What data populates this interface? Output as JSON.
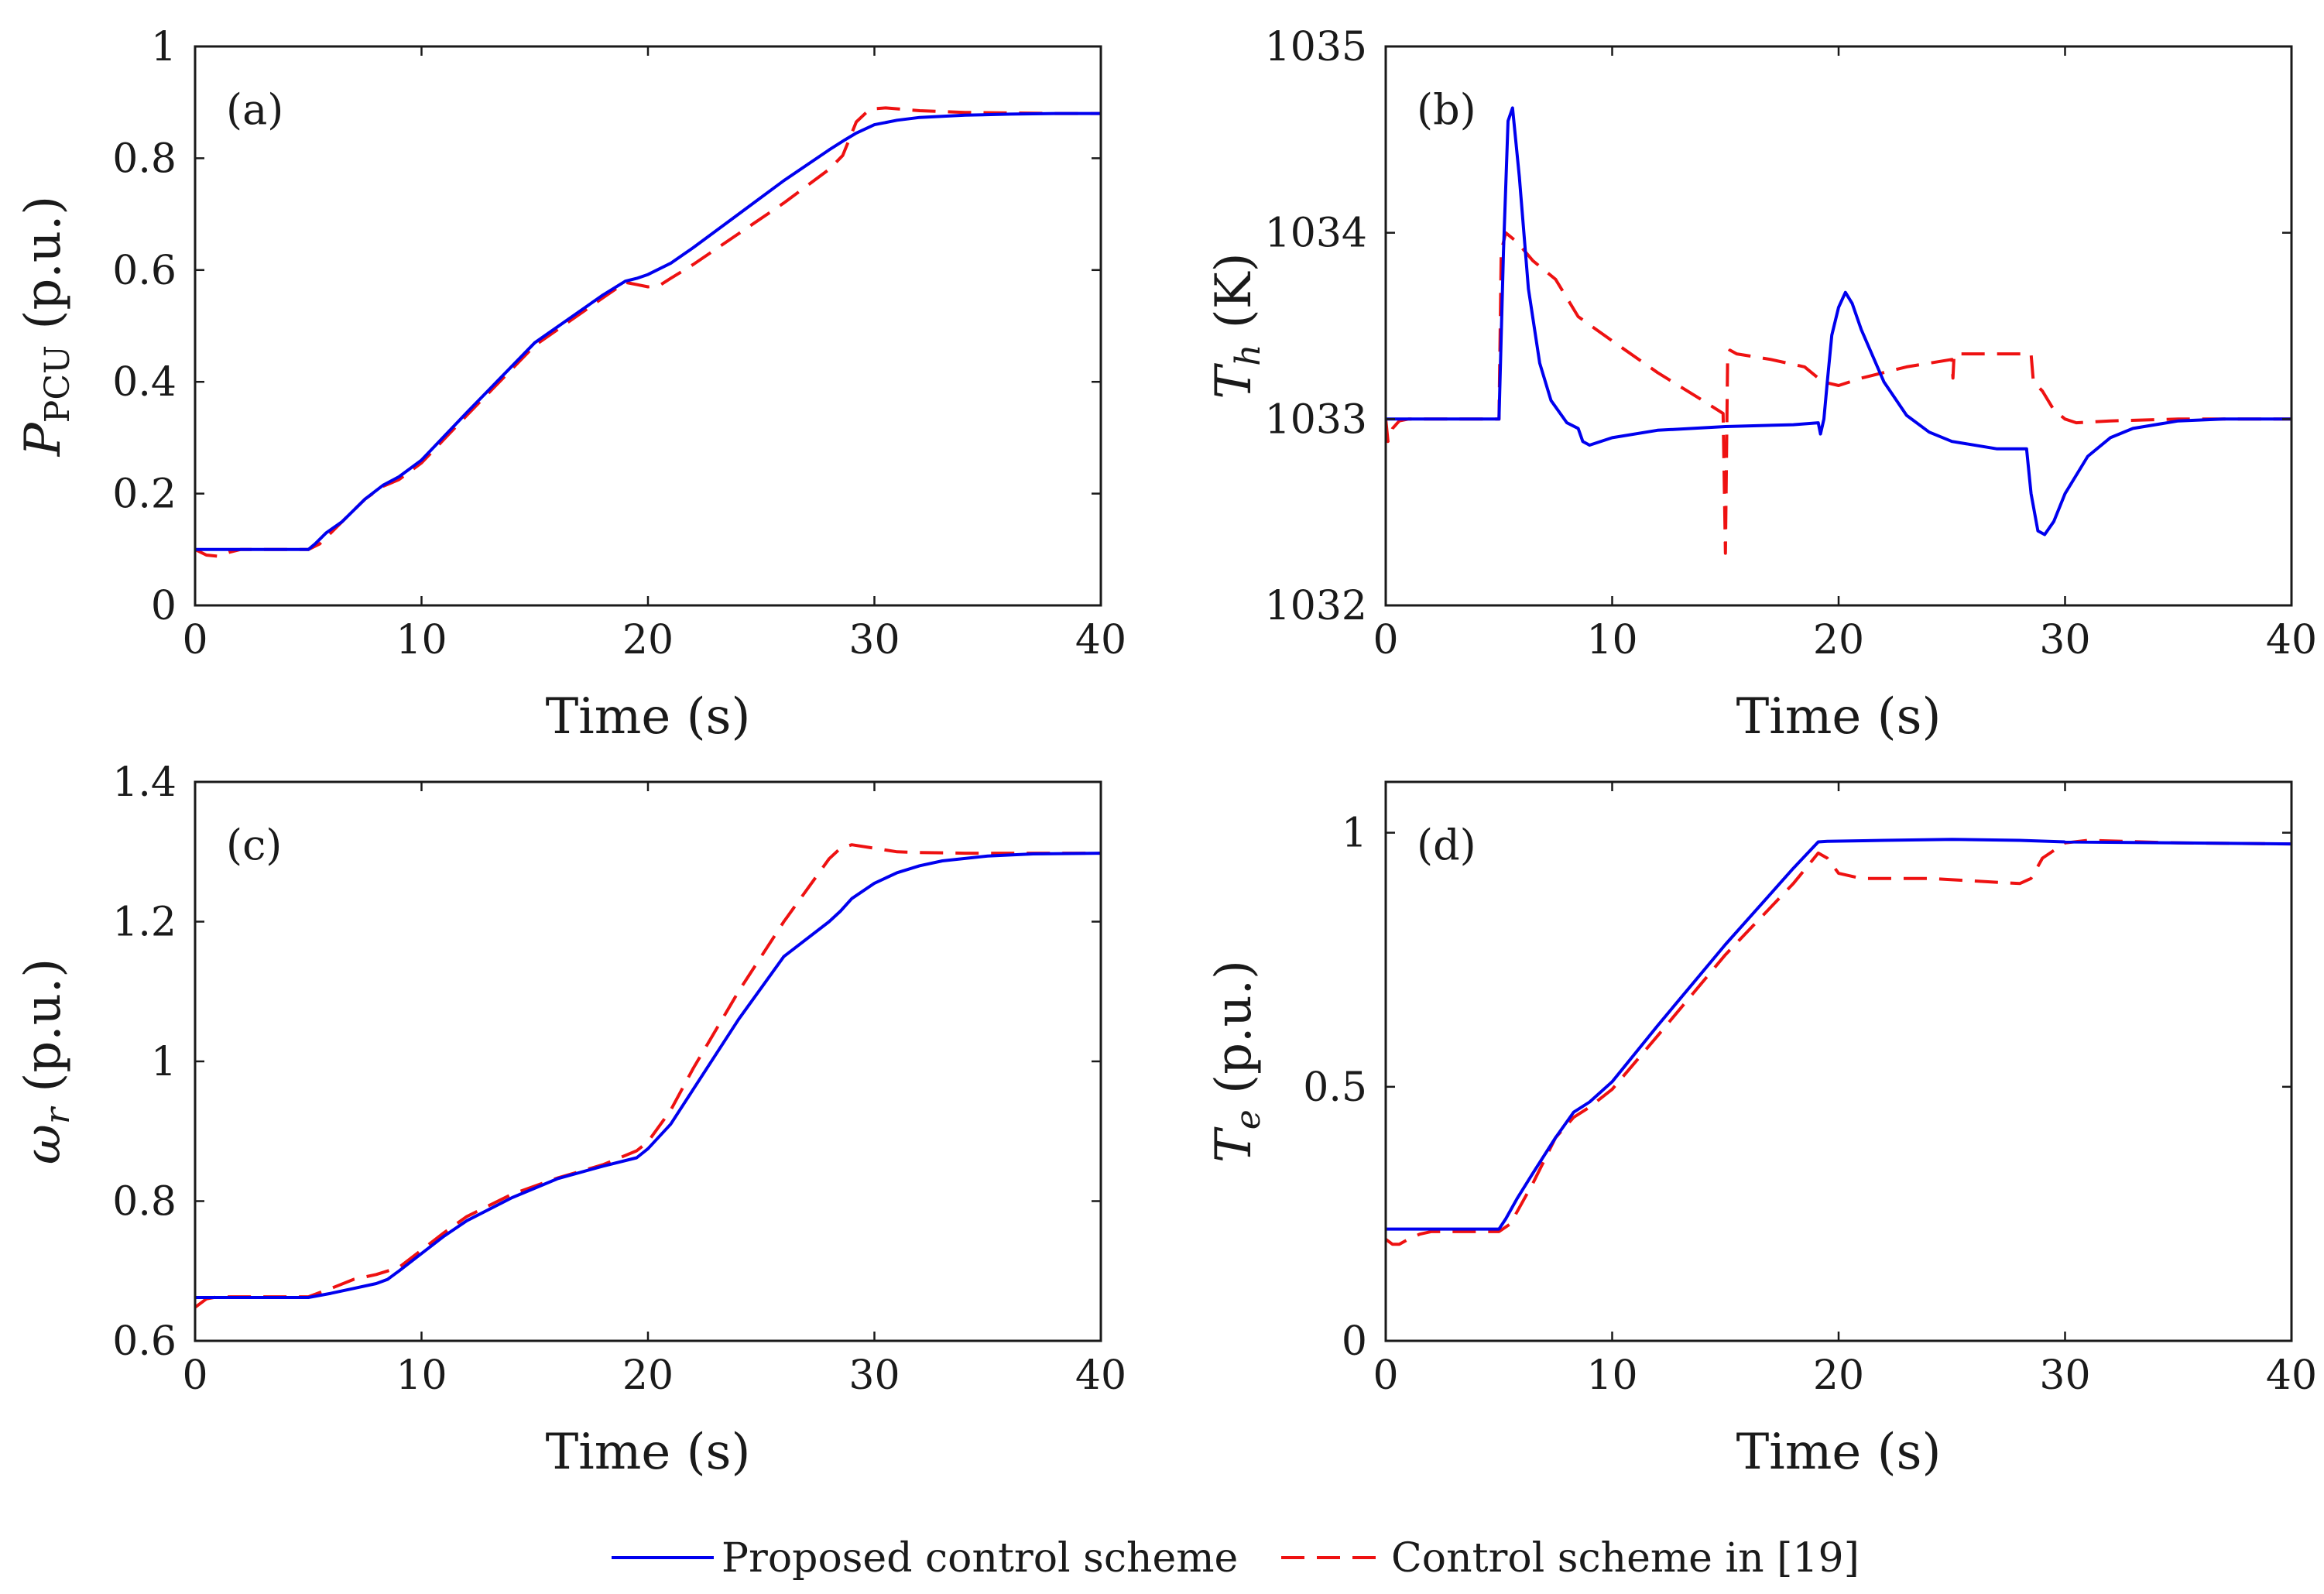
{
  "colors": {
    "proposed": "#0000ee",
    "reference": "#ee1111",
    "axis": "#1a1a1a"
  },
  "legend": {
    "items": [
      {
        "label": "Proposed control scheme",
        "style": "solid",
        "color": "#0000ee"
      },
      {
        "label": "Control scheme in [19]",
        "style": "dashed",
        "color": "#ee1111"
      }
    ]
  },
  "chart_data": [
    {
      "type": "line",
      "panel_label": "(a)",
      "xlabel": "Time (s)",
      "ylabel": {
        "symbol": "P",
        "subscript": "PCU",
        "unit": " (p.u.)"
      },
      "xlim": [
        0,
        40
      ],
      "ylim": [
        0,
        1
      ],
      "xticks": [
        0,
        10,
        20,
        30,
        40
      ],
      "yticks": [
        0,
        0.2,
        0.4,
        0.6,
        0.8,
        1
      ],
      "ytick_labels": [
        "0",
        "0.2",
        "0.4",
        "0.6",
        "0.8",
        "1"
      ],
      "series": [
        {
          "name": "Proposed control scheme",
          "style": "solid",
          "x": [
            0,
            5,
            5.3,
            5.8,
            6.5,
            7.5,
            8.3,
            9,
            9.5,
            10,
            12,
            15,
            18,
            19,
            19.5,
            20,
            21,
            22,
            24,
            26,
            28,
            28.7,
            29.2,
            30,
            31,
            32,
            34,
            36,
            38,
            40
          ],
          "y": [
            0.1,
            0.1,
            0.11,
            0.13,
            0.15,
            0.19,
            0.215,
            0.23,
            0.245,
            0.26,
            0.345,
            0.47,
            0.555,
            0.58,
            0.585,
            0.592,
            0.612,
            0.64,
            0.7,
            0.76,
            0.815,
            0.833,
            0.845,
            0.86,
            0.868,
            0.873,
            0.877,
            0.879,
            0.88,
            0.88
          ]
        },
        {
          "name": "Control scheme in [19]",
          "style": "dashed",
          "x": [
            0,
            0.5,
            1,
            1.5,
            2,
            5,
            5.5,
            6.5,
            7.5,
            8.3,
            9,
            10,
            12,
            15,
            18,
            19,
            19.5,
            20,
            20.5,
            21,
            22,
            24,
            26,
            28,
            28.6,
            29.2,
            29.8,
            30.5,
            32,
            34,
            36,
            38,
            40
          ],
          "y": [
            0.1,
            0.09,
            0.088,
            0.095,
            0.1,
            0.1,
            0.11,
            0.15,
            0.19,
            0.213,
            0.225,
            0.255,
            0.34,
            0.465,
            0.55,
            0.578,
            0.574,
            0.57,
            0.572,
            0.585,
            0.61,
            0.665,
            0.72,
            0.78,
            0.805,
            0.865,
            0.888,
            0.89,
            0.885,
            0.882,
            0.881,
            0.88,
            0.88
          ]
        }
      ]
    },
    {
      "type": "line",
      "panel_label": "(b)",
      "xlabel": "Time (s)",
      "ylabel": {
        "symbol": "T",
        "subscript": "h",
        "unit": " (K)"
      },
      "xlim": [
        0,
        40
      ],
      "ylim": [
        1032,
        1035
      ],
      "xticks": [
        0,
        10,
        20,
        30,
        40
      ],
      "yticks": [
        1032,
        1033,
        1034,
        1035
      ],
      "ytick_labels": [
        "1032",
        "1033",
        "1034",
        "1035"
      ],
      "series": [
        {
          "name": "Proposed control scheme",
          "style": "solid",
          "x": [
            0,
            5,
            5.2,
            5.4,
            5.6,
            5.9,
            6.3,
            6.8,
            7.3,
            8,
            8.5,
            8.7,
            9,
            10,
            12,
            15,
            18,
            19.1,
            19.2,
            19.35,
            19.5,
            19.7,
            20,
            20.3,
            20.6,
            21,
            22,
            23,
            24,
            25,
            27,
            28.3,
            28.5,
            28.8,
            29.1,
            29.5,
            30,
            31,
            32,
            33,
            35,
            37,
            40
          ],
          "y": [
            1033,
            1033,
            1033.9,
            1034.6,
            1034.67,
            1034.3,
            1033.7,
            1033.3,
            1033.1,
            1032.98,
            1032.95,
            1032.88,
            1032.86,
            1032.9,
            1032.94,
            1032.96,
            1032.97,
            1032.98,
            1032.92,
            1033.0,
            1033.2,
            1033.45,
            1033.6,
            1033.68,
            1033.62,
            1033.48,
            1033.2,
            1033.02,
            1032.93,
            1032.88,
            1032.84,
            1032.84,
            1032.6,
            1032.4,
            1032.38,
            1032.45,
            1032.6,
            1032.8,
            1032.9,
            1032.95,
            1032.99,
            1033.0,
            1033.0
          ]
        },
        {
          "name": "Control scheme in [19]",
          "style": "dashed",
          "x": [
            0,
            0.1,
            0.3,
            0.6,
            1,
            5,
            5.1,
            5.3,
            5.8,
            6.5,
            7.5,
            8.5,
            10,
            12,
            14,
            14.9,
            15.0,
            15.1,
            15.2,
            15.5,
            17,
            18.5,
            19.3,
            20,
            21,
            22,
            23,
            25,
            25.05,
            25.1,
            26,
            27,
            28,
            28.5,
            28.6,
            29,
            29.5,
            30,
            30.5,
            32,
            35,
            38,
            40
          ],
          "y": [
            1033,
            1032.88,
            1032.95,
            1032.99,
            1033.0,
            1033.0,
            1033.9,
            1034.0,
            1033.95,
            1033.85,
            1033.75,
            1033.55,
            1033.42,
            1033.25,
            1033.1,
            1033.03,
            1032.28,
            1033.35,
            1033.37,
            1033.35,
            1033.32,
            1033.28,
            1033.2,
            1033.18,
            1033.22,
            1033.25,
            1033.28,
            1033.32,
            1033.22,
            1033.35,
            1033.35,
            1033.35,
            1033.35,
            1033.35,
            1033.2,
            1033.15,
            1033.05,
            1033.0,
            1032.98,
            1032.99,
            1033.0,
            1033.0,
            1033.0
          ]
        }
      ]
    },
    {
      "type": "line",
      "panel_label": "(c)",
      "xlabel": "Time (s)",
      "ylabel": {
        "symbol": "ω",
        "subscript": "r",
        "unit": " (p.u.)"
      },
      "xlim": [
        0,
        40
      ],
      "ylim": [
        0.6,
        1.4
      ],
      "xticks": [
        0,
        10,
        20,
        30,
        40
      ],
      "yticks": [
        0.6,
        0.8,
        1,
        1.2,
        1.4
      ],
      "ytick_labels": [
        "0.6",
        "0.8",
        "1",
        "1.2",
        "1.4"
      ],
      "series": [
        {
          "name": "Proposed control scheme",
          "style": "solid",
          "x": [
            0,
            5,
            6,
            7,
            8,
            8.5,
            9,
            10,
            11,
            12,
            14,
            16,
            18,
            19.5,
            20,
            21,
            22,
            24,
            26,
            28,
            28.5,
            29,
            30,
            31,
            32,
            33,
            35,
            37,
            40
          ],
          "y": [
            0.662,
            0.662,
            0.668,
            0.675,
            0.682,
            0.688,
            0.7,
            0.725,
            0.75,
            0.772,
            0.805,
            0.832,
            0.85,
            0.862,
            0.875,
            0.91,
            0.96,
            1.06,
            1.15,
            1.2,
            1.215,
            1.233,
            1.255,
            1.27,
            1.28,
            1.287,
            1.294,
            1.297,
            1.298
          ]
        },
        {
          "name": "Control scheme in [19]",
          "style": "dashed",
          "x": [
            0,
            0.5,
            1,
            3,
            5,
            6,
            7,
            8,
            9,
            10,
            11,
            12,
            14,
            16,
            18,
            19.5,
            20,
            21,
            22,
            24,
            26,
            28,
            28.5,
            29,
            30,
            31,
            32,
            34,
            37,
            40
          ],
          "y": [
            0.648,
            0.66,
            0.663,
            0.663,
            0.663,
            0.675,
            0.688,
            0.695,
            0.705,
            0.73,
            0.755,
            0.778,
            0.81,
            0.833,
            0.852,
            0.872,
            0.885,
            0.93,
            0.99,
            1.1,
            1.2,
            1.29,
            1.305,
            1.31,
            1.305,
            1.3,
            1.299,
            1.298,
            1.298,
            1.298
          ]
        }
      ]
    },
    {
      "type": "line",
      "panel_label": "(d)",
      "xlabel": "Time (s)",
      "ylabel": {
        "symbol": "T",
        "subscript": "e",
        "unit": " (p.u.)"
      },
      "xlim": [
        0,
        40
      ],
      "ylim": [
        0,
        1.1
      ],
      "xticks": [
        0,
        10,
        20,
        30,
        40
      ],
      "yticks": [
        0,
        0.5,
        1
      ],
      "ytick_labels": [
        "0",
        "0.5",
        "1"
      ],
      "series": [
        {
          "name": "Proposed control scheme",
          "style": "solid",
          "x": [
            0,
            5,
            5.3,
            5.8,
            6.5,
            7.5,
            8.3,
            9,
            10,
            12,
            15,
            18,
            19.1,
            19.5,
            22,
            25,
            28,
            30,
            35,
            40
          ],
          "y": [
            0.22,
            0.22,
            0.24,
            0.28,
            0.33,
            0.4,
            0.45,
            0.47,
            0.51,
            0.62,
            0.78,
            0.93,
            0.982,
            0.983,
            0.985,
            0.987,
            0.985,
            0.982,
            0.98,
            0.978
          ]
        },
        {
          "name": "Control scheme in [19]",
          "style": "dashed",
          "x": [
            0,
            0.3,
            0.6,
            1,
            1.5,
            2,
            5,
            5.5,
            6.5,
            7.5,
            8.3,
            9,
            10,
            12,
            15,
            18,
            19.1,
            19.5,
            20,
            21,
            24,
            28,
            28.5,
            29,
            30,
            31,
            35,
            40
          ],
          "y": [
            0.2,
            0.19,
            0.19,
            0.2,
            0.21,
            0.215,
            0.215,
            0.23,
            0.31,
            0.4,
            0.44,
            0.46,
            0.495,
            0.6,
            0.76,
            0.9,
            0.96,
            0.95,
            0.92,
            0.91,
            0.91,
            0.9,
            0.91,
            0.95,
            0.98,
            0.985,
            0.98,
            0.978
          ]
        }
      ]
    }
  ]
}
